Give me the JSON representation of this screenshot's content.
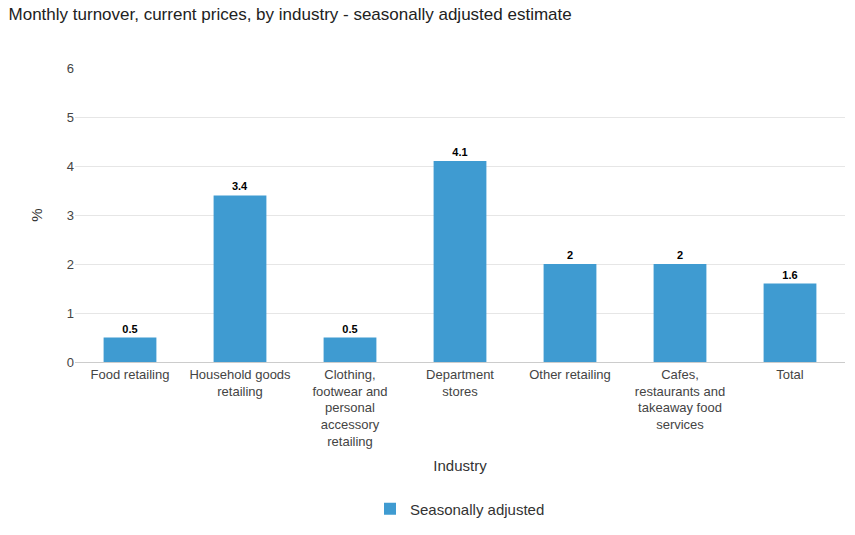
{
  "chart_data": {
    "type": "bar",
    "title": "Monthly turnover, current prices, by industry - seasonally adjusted estimate",
    "x_label": "Industry",
    "y_label": "%",
    "categories": [
      "Food retailing",
      "Household goods retailing",
      "Clothing, footwear and personal accessory retailing",
      "Department stores",
      "Other retailing",
      "Cafes, restaurants and takeaway food services",
      "Total"
    ],
    "series": [
      {
        "name": "Seasonally adjusted",
        "color": "#3f9bd1",
        "values": [
          0.5,
          3.4,
          0.5,
          4.1,
          2,
          2,
          1.6
        ]
      }
    ],
    "ylim": [
      0,
      6
    ],
    "yticks": [
      0,
      1,
      2,
      3,
      4,
      5,
      6
    ],
    "grid": true,
    "legend": "bottom",
    "data_labels": true
  }
}
